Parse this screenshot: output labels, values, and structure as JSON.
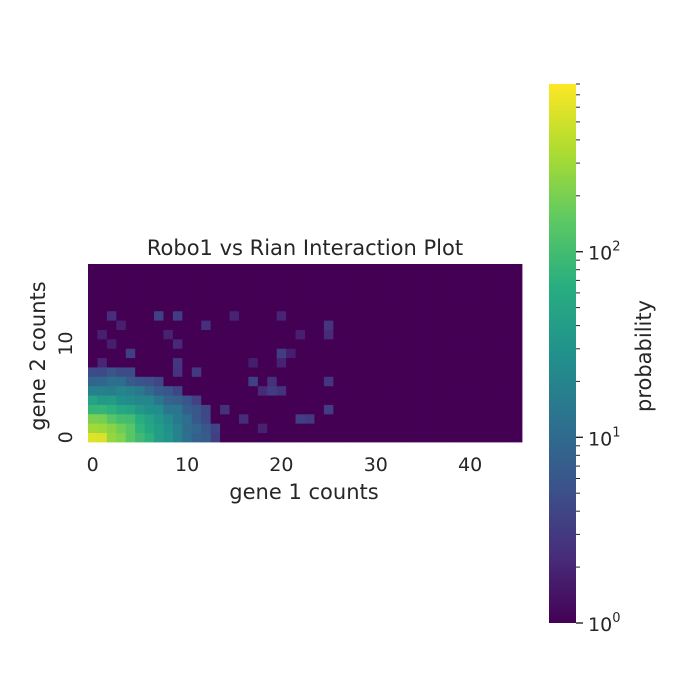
{
  "chart_data": {
    "type": "heatmap",
    "title": "Robo1 vs Rian Interaction Plot",
    "xlabel": "gene 1 counts",
    "ylabel": "gene 2 counts",
    "x_tick_labels": [
      "0",
      "10",
      "20",
      "30",
      "40"
    ],
    "y_tick_labels": [
      "0",
      "10"
    ],
    "x_cells": 46,
    "y_cells": 19,
    "colorbar": {
      "label": "probability",
      "scale": "log",
      "range": [
        1,
        800
      ],
      "ticks": [
        {
          "base": "10",
          "exp": "0"
        },
        {
          "base": "10",
          "exp": "1"
        },
        {
          "base": "10",
          "exp": "2"
        }
      ]
    },
    "grid": false
  }
}
